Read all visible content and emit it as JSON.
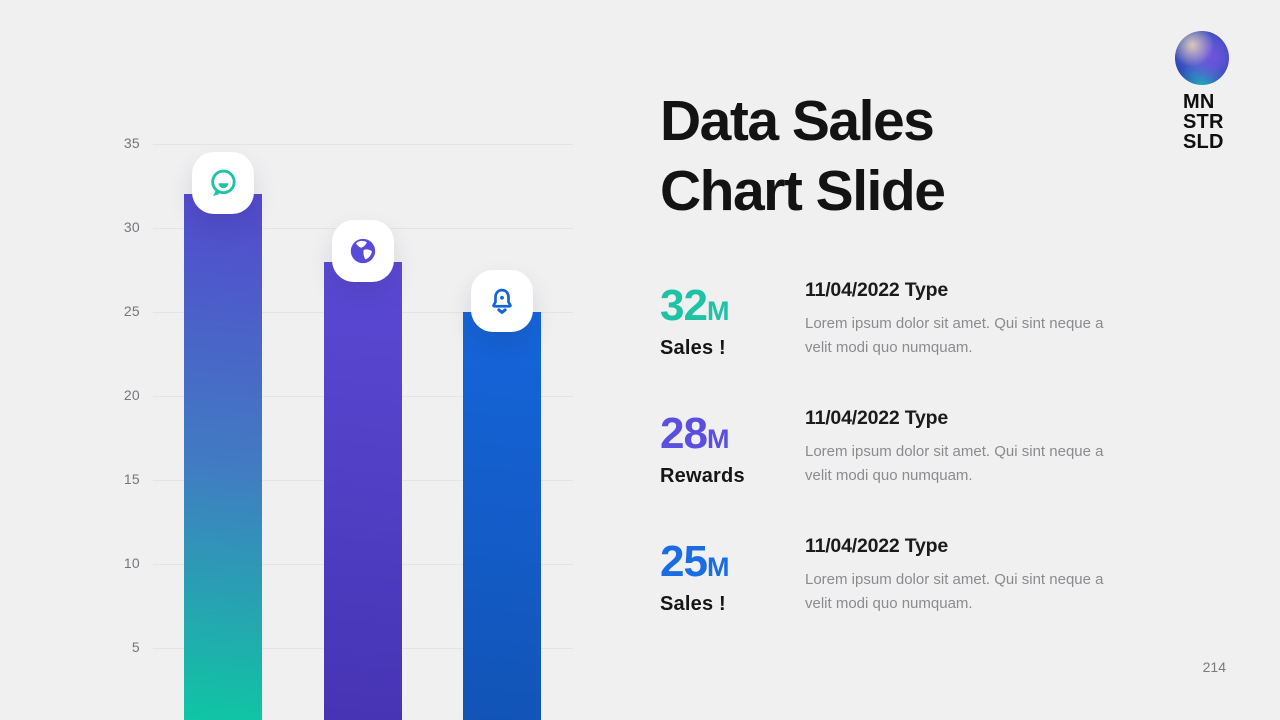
{
  "slide": {
    "background_color": "#f0f0f1",
    "page_number": "214"
  },
  "logo": {
    "lines": [
      "MN",
      "STR",
      "SLD"
    ]
  },
  "title": {
    "line1": "Data Sales",
    "line2": "Chart Slide"
  },
  "chart_data": {
    "type": "bar",
    "categories": [
      "Sales",
      "Rewards",
      "Sales"
    ],
    "values": [
      32,
      28,
      25
    ],
    "bar_icons": [
      "chat-bubble",
      "globe",
      "bell"
    ],
    "yticks": [
      35,
      30,
      25,
      20,
      15,
      10,
      5
    ],
    "ylim": [
      0,
      35
    ],
    "grid": true,
    "legend": "none",
    "bar_gradients": [
      [
        "#5449ce",
        "#417cc2",
        "#0fc6a2"
      ],
      [
        "#5b49d4",
        "#4634b4"
      ],
      [
        "#1565db",
        "#1254b6"
      ]
    ],
    "icon_colors": [
      "#1ec2a4",
      "#5a4ad8",
      "#1565d8"
    ],
    "title": "Data Sales Chart Slide"
  },
  "stats": [
    {
      "value_number": "32",
      "value_suffix": "M",
      "label": "Sales !",
      "color": "#1ec2a4",
      "heading": "11/04/2022 Type",
      "body": "Lorem ipsum dolor sit amet. Qui sint neque a velit modi quo numquam."
    },
    {
      "value_number": "28",
      "value_suffix": "M",
      "label": "Rewards",
      "color": "#5b4fe0",
      "heading": "11/04/2022 Type",
      "body": "Lorem ipsum dolor sit amet. Qui sint neque a velit modi quo numquam."
    },
    {
      "value_number": "25",
      "value_suffix": "M",
      "label": "Sales !",
      "color": "#1b6ce2",
      "heading": "11/04/2022 Type",
      "body": "Lorem ipsum dolor sit amet. Qui sint neque a velit modi quo numquam."
    }
  ]
}
